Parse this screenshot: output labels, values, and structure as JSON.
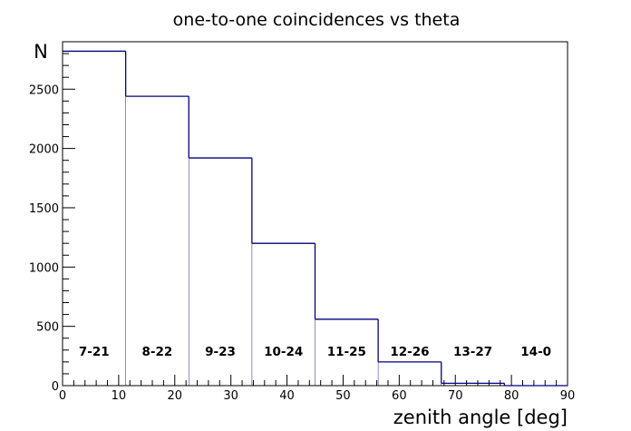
{
  "chart_data": {
    "type": "bar",
    "title": "one-to-one coincidences vs theta",
    "xlabel": "zenith angle [deg]",
    "ylabel": "N",
    "xlim": [
      0,
      90
    ],
    "ylim": [
      0,
      2900
    ],
    "x_ticks": [
      0,
      10,
      20,
      30,
      40,
      50,
      60,
      70,
      80,
      90
    ],
    "y_ticks": [
      0,
      500,
      1000,
      1500,
      2000,
      2500
    ],
    "bin_edges": [
      0,
      11.25,
      22.5,
      33.75,
      45,
      56.25,
      67.5,
      78.75,
      90
    ],
    "values": [
      2820,
      2440,
      1920,
      1200,
      560,
      200,
      20,
      0
    ],
    "categories": [
      "7-21",
      "8-22",
      "9-23",
      "10-24",
      "11-25",
      "12-26",
      "13-27",
      "14-0"
    ],
    "line_color": "#000080",
    "grid": false
  }
}
